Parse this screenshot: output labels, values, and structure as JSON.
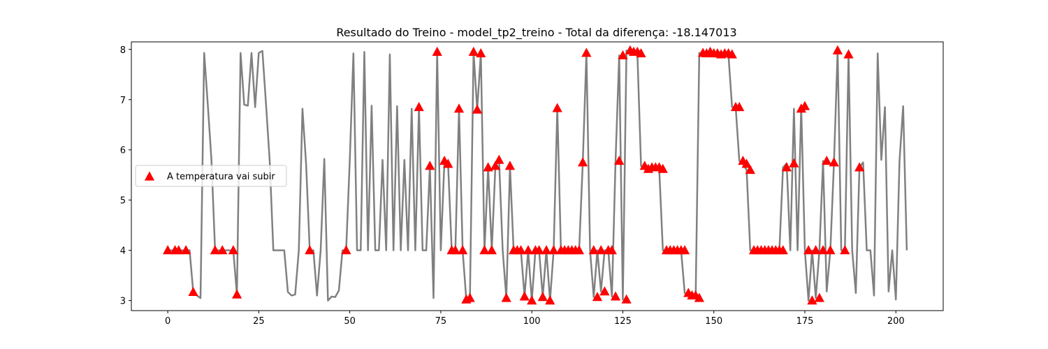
{
  "chart_data": {
    "type": "line",
    "title": "Resultado do Treino - model_tp2_treino - Total da diferença: -18.147013",
    "xlabel": "",
    "ylabel": "",
    "xlim": [
      -10,
      213
    ],
    "ylim": [
      2.8,
      8.15
    ],
    "x_ticks": [
      0,
      25,
      50,
      75,
      100,
      125,
      150,
      175,
      200
    ],
    "x_tick_labels": [
      "0",
      "25",
      "50",
      "75",
      "100",
      "125",
      "150",
      "175",
      "200"
    ],
    "y_ticks": [
      3,
      4,
      5,
      6,
      7,
      8
    ],
    "y_tick_labels": [
      "3",
      "4",
      "5",
      "6",
      "7",
      "8"
    ],
    "grid": false,
    "legend_position": "center-left",
    "series": [
      {
        "name": "",
        "kind": "line",
        "color": "#808080",
        "values": [
          4.0,
          4.0,
          4.0,
          4.0,
          4.0,
          4.0,
          4.0,
          3.17,
          3.1,
          3.05,
          7.93,
          6.9,
          5.8,
          4.0,
          4.0,
          4.0,
          4.0,
          4.0,
          4.0,
          3.12,
          7.93,
          6.9,
          6.88,
          7.93,
          6.85,
          7.93,
          7.97,
          6.9,
          5.78,
          4.0,
          4.0,
          4.0,
          4.0,
          3.17,
          3.1,
          3.12,
          4.0,
          6.82,
          5.72,
          4.0,
          4.0,
          3.1,
          4.0,
          5.82,
          3.0,
          3.08,
          3.07,
          3.2,
          4.0,
          4.0,
          5.8,
          7.92,
          4.0,
          4.0,
          7.95,
          4.0,
          6.88,
          4.0,
          4.0,
          5.8,
          4.0,
          7.9,
          4.0,
          6.87,
          4.0,
          5.8,
          4.0,
          6.82,
          4.0,
          6.85,
          4.0,
          4.0,
          5.68,
          3.05,
          7.95,
          4.0,
          5.78,
          5.72,
          4.0,
          4.0,
          6.82,
          4.0,
          3.02,
          3.05,
          7.95,
          6.8,
          7.92,
          4.0,
          5.65,
          4.0,
          5.68,
          5.8,
          4.0,
          3.05,
          5.68,
          4.0,
          4.0,
          4.0,
          3.08,
          4.0,
          3.0,
          4.0,
          4.0,
          3.07,
          4.0,
          3.0,
          4.0,
          6.83,
          4.0,
          4.0,
          4.0,
          4.0,
          4.0,
          4.0,
          5.75,
          7.93,
          4.0,
          3.07,
          4.0,
          3.18,
          4.0,
          4.0,
          3.08,
          5.78,
          7.88,
          3.02,
          7.98,
          7.95,
          7.95,
          7.92,
          5.68,
          5.62,
          5.65,
          5.65,
          5.65,
          5.62,
          4.0,
          4.0,
          4.0,
          4.0,
          4.0,
          4.0,
          3.15,
          3.1,
          3.1,
          3.05,
          7.93,
          7.92,
          7.95,
          7.92,
          7.92,
          7.9,
          7.92,
          7.92,
          7.9,
          6.85,
          6.85,
          5.78,
          5.72,
          5.6,
          4.0,
          4.0,
          4.0,
          4.0,
          4.0,
          4.0,
          4.0,
          4.0,
          4.0,
          5.65,
          5.73,
          4.0,
          6.82,
          4.0,
          6.87,
          4.0,
          3.0,
          4.0,
          3.05,
          4.0,
          5.78,
          3.18,
          4.0,
          5.75,
          7.98,
          4.0,
          4.0,
          7.9,
          4.0,
          3.15,
          5.65,
          5.75,
          4.0,
          4.0,
          3.1,
          7.92,
          5.8,
          6.85,
          3.18,
          4.0,
          3.02,
          5.78,
          6.87,
          4.0
        ]
      },
      {
        "name": "A temperatura vai subir",
        "kind": "scatter",
        "marker": "triangle-up",
        "color": "#ff0000",
        "x": [
          0,
          2,
          3,
          5,
          7,
          13,
          15,
          18,
          19,
          39,
          49,
          69,
          72,
          74,
          76,
          77,
          78,
          79,
          80,
          81,
          82,
          83,
          84,
          85,
          86,
          87,
          88,
          89,
          90,
          91,
          93,
          94,
          95,
          96,
          97,
          98,
          99,
          100,
          101,
          102,
          103,
          104,
          105,
          106,
          107,
          108,
          109,
          110,
          111,
          112,
          113,
          114,
          115,
          117,
          118,
          119,
          120,
          121,
          122,
          123,
          124,
          125,
          126,
          127,
          128,
          129,
          130,
          131,
          132,
          133,
          134,
          135,
          136,
          137,
          138,
          139,
          140,
          141,
          142,
          143,
          144,
          145,
          146,
          147,
          148,
          149,
          150,
          151,
          152,
          153,
          154,
          155,
          156,
          157,
          158,
          159,
          160,
          161,
          162,
          163,
          164,
          165,
          166,
          167,
          168,
          169,
          170,
          172,
          174,
          175,
          176,
          177,
          178,
          179,
          180,
          181,
          182,
          183,
          184,
          186,
          187,
          190
        ],
        "y": [
          4.0,
          4.0,
          4.0,
          4.0,
          3.17,
          4.0,
          4.0,
          4.0,
          3.12,
          4.0,
          4.0,
          6.85,
          5.68,
          7.95,
          5.78,
          5.72,
          4.0,
          4.0,
          6.82,
          4.0,
          3.02,
          3.05,
          7.95,
          6.8,
          7.92,
          4.0,
          5.65,
          4.0,
          5.68,
          5.8,
          3.05,
          5.68,
          4.0,
          4.0,
          4.0,
          3.08,
          4.0,
          3.0,
          4.0,
          4.0,
          3.07,
          4.0,
          3.0,
          4.0,
          6.83,
          4.0,
          4.0,
          4.0,
          4.0,
          4.0,
          4.0,
          5.75,
          7.93,
          4.0,
          3.07,
          4.0,
          3.18,
          4.0,
          4.0,
          3.08,
          5.78,
          7.88,
          3.02,
          7.98,
          7.95,
          7.95,
          7.92,
          5.68,
          5.62,
          5.65,
          5.65,
          5.65,
          5.62,
          4.0,
          4.0,
          4.0,
          4.0,
          4.0,
          4.0,
          3.15,
          3.1,
          3.1,
          3.05,
          7.93,
          7.92,
          7.95,
          7.92,
          7.92,
          7.9,
          7.92,
          7.92,
          7.9,
          6.85,
          6.85,
          5.78,
          5.72,
          5.6,
          4.0,
          4.0,
          4.0,
          4.0,
          4.0,
          4.0,
          4.0,
          4.0,
          4.0,
          5.65,
          5.73,
          6.82,
          6.87,
          4.0,
          3.0,
          4.0,
          3.05,
          4.0,
          5.78,
          4.0,
          5.75,
          7.98,
          4.0,
          7.9,
          5.65
        ]
      }
    ]
  }
}
